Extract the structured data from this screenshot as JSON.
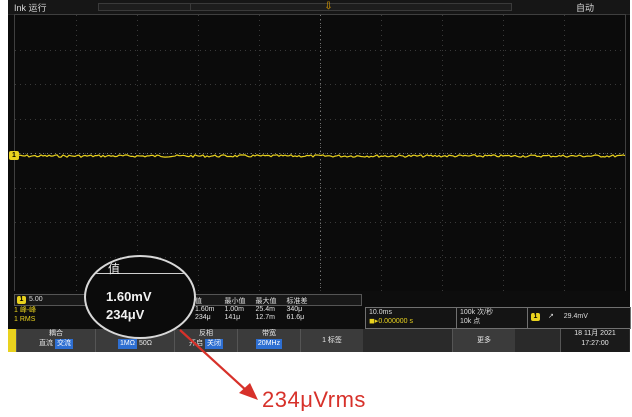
{
  "topbar": {
    "mode": "Ink 运行",
    "trigger": "自动"
  },
  "trigger_marker": "⇩",
  "channel_marker": "1",
  "ch_row": {
    "badge": "1",
    "label": "5.00"
  },
  "side": {
    "line1": "1 峰-峰",
    "line2": "1 RMS"
  },
  "measurement_table": {
    "headers": [
      "值",
      "最小值",
      "最大值",
      "标准差"
    ],
    "row1": [
      "1.60m",
      "1.00m",
      "25.4m",
      "340μ"
    ],
    "row2": [
      "234μ",
      "141μ",
      "12.7m",
      "61.6μ"
    ]
  },
  "timebase": {
    "line1": "10.0ms",
    "line2": "◼▸0.000000 s"
  },
  "sample": {
    "line1": "100k 次/秒",
    "line2": "10k 点"
  },
  "trigger_info": {
    "badge": "1",
    "slope": "↗",
    "level": "29.4mV"
  },
  "buttons": {
    "coupling": {
      "title": "耦合",
      "opt_a": "直流",
      "opt_b": "交流"
    },
    "termination": {
      "title": "终端",
      "opt_a": "1MΩ",
      "opt_b": "50Ω"
    },
    "invert": {
      "title": "反相",
      "opt_a": "开启",
      "opt_b": "关闭"
    },
    "bandwidth": {
      "title": "带宽",
      "value": "20MHz"
    },
    "label": {
      "title": "1 标签"
    },
    "more": {
      "title": "更多"
    }
  },
  "datetime": {
    "date": "18 11月 2021",
    "time": "17:27:00"
  },
  "magnifier": {
    "title": "值",
    "v1": "1.60mV",
    "v2": "234μV"
  },
  "annotation": "234μVrms",
  "colors": {
    "trace": "#e9d21e",
    "arrow": "#d7312a",
    "grid": "#3a3a3a",
    "accent": "#2e6fd2"
  }
}
